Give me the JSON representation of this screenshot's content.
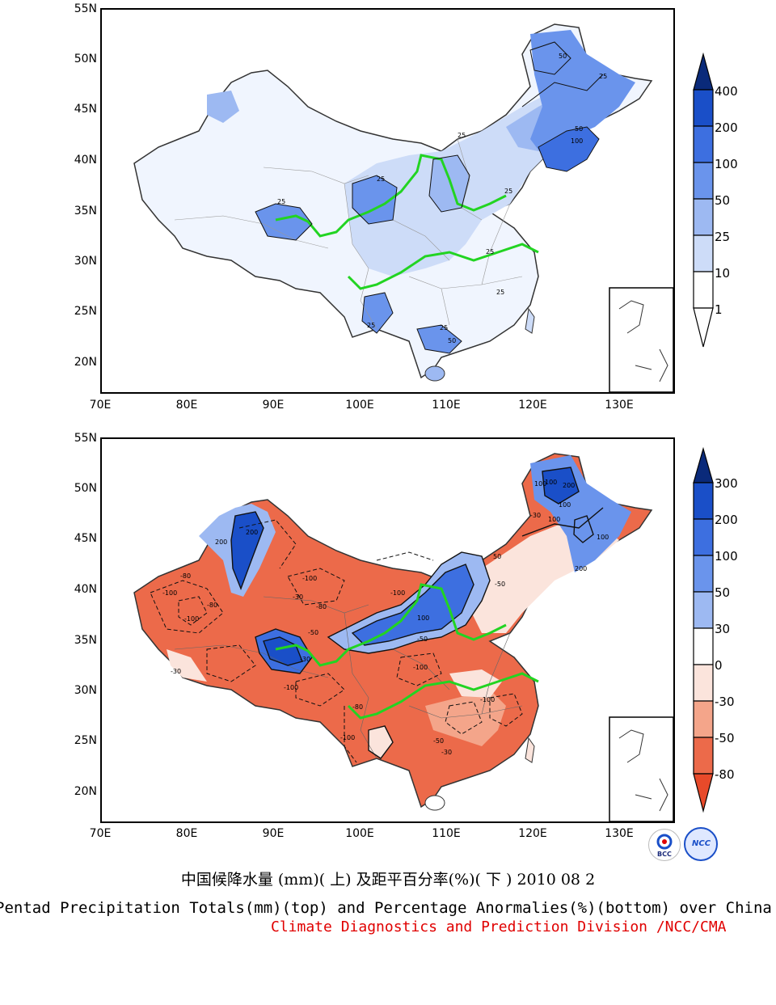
{
  "top_map": {
    "lat_labels": [
      "55N",
      "50N",
      "45N",
      "40N",
      "35N",
      "30N",
      "25N",
      "20N"
    ],
    "lon_labels": [
      "70E",
      "80E",
      "90E",
      "100E",
      "110E",
      "120E",
      "130E"
    ],
    "colorbar": {
      "levels": [
        "400",
        "200",
        "100",
        "50",
        "25",
        "10",
        "1"
      ],
      "colors": [
        "#0a2a7a",
        "#1a4fc8",
        "#3d6fe0",
        "#6a94ec",
        "#9db9f2",
        "#cddcf8",
        "#ffffff"
      ]
    },
    "contour_labels": [
      "50",
      "25",
      "50",
      "100",
      "25",
      "25",
      "25",
      "25",
      "25",
      "25",
      "50",
      "25",
      "25"
    ]
  },
  "bottom_map": {
    "lat_labels": [
      "55N",
      "50N",
      "45N",
      "40N",
      "35N",
      "30N",
      "25N",
      "20N"
    ],
    "lon_labels": [
      "70E",
      "80E",
      "90E",
      "100E",
      "110E",
      "120E",
      "130E"
    ],
    "colorbar": {
      "levels": [
        "300",
        "200",
        "100",
        "50",
        "30",
        "0",
        "-30",
        "-50",
        "-80"
      ],
      "colors": [
        "#0a2a7a",
        "#1a4fc8",
        "#3d6fe0",
        "#6a94ec",
        "#9db9f2",
        "#ffffff",
        "#fbe4dc",
        "#f4a58a",
        "#ec6a4a",
        "#e84a2a"
      ]
    },
    "contour_labels": [
      "200",
      "200",
      "100",
      "100",
      "200",
      "-100",
      "-80",
      "-100",
      "-80",
      "-100",
      "-30",
      "-100",
      "-80",
      "-100",
      "-30",
      "-50",
      "100",
      "-100",
      "-50",
      "-30",
      "-80",
      "-100",
      "100",
      "-50",
      "-30",
      "200",
      "100",
      "50",
      "-50",
      "-30",
      "-100",
      "100"
    ]
  },
  "caption": {
    "chinese": "中国候降水量 (mm)( 上) 及距平百分率(%)( 下 ) 2010 08 2",
    "english": "Pentad Precipitation Totals(mm)(top) and Percentage Anormalies(%)(bottom) over China",
    "organization": "Climate Diagnostics and Prediction Division /NCC/CMA"
  },
  "logos": {
    "left": "BCC",
    "right": "NCC"
  }
}
